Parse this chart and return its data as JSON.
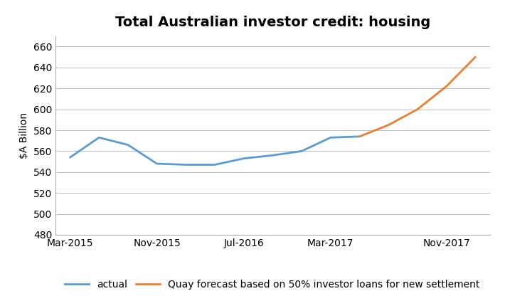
{
  "title": "Total Australian investor credit: housing",
  "ylabel": "$A Billion",
  "ylim": [
    480,
    670
  ],
  "yticks": [
    480,
    500,
    520,
    540,
    560,
    580,
    600,
    620,
    640,
    660
  ],
  "xtick_labels": [
    "Mar-2015",
    "Nov-2015",
    "Jul-2016",
    "Mar-2017",
    "Nov-2017"
  ],
  "actual_x": [
    0,
    1,
    2,
    3,
    4,
    5,
    6,
    7,
    8,
    9,
    10
  ],
  "actual_y": [
    554,
    573,
    566,
    548,
    547,
    547,
    553,
    556,
    560,
    573,
    574
  ],
  "forecast_x": [
    10,
    11,
    12,
    13,
    14
  ],
  "forecast_y": [
    574,
    585,
    600,
    622,
    650
  ],
  "actual_color": "#5B9BD5",
  "forecast_color": "#ED7D31",
  "actual_label": "actual",
  "forecast_label": "Quay forecast based on 50% investor loans for new settlement",
  "title_fontsize": 14,
  "axis_fontsize": 10,
  "legend_fontsize": 10,
  "line_width": 2.0,
  "background_color": "#FFFFFF",
  "grid_color": "#BBBBBB",
  "x_tick_positions": [
    0,
    3,
    6,
    9,
    13
  ],
  "total_points": 15,
  "xlim_left": -0.5,
  "xlim_right": 14.5
}
